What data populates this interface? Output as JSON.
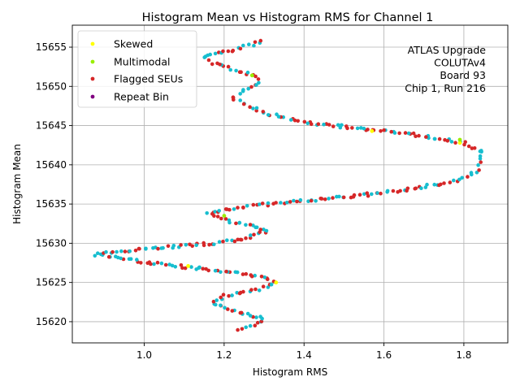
{
  "chart_data": {
    "type": "scatter",
    "title": "Histogram Mean vs Histogram RMS for Channel 1",
    "xlabel": "Histogram RMS",
    "ylabel": "Histogram Mean",
    "xlim": [
      0.82,
      1.91
    ],
    "ylim": [
      15617.3,
      15657.8
    ],
    "xticks": [
      1.0,
      1.2,
      1.4,
      1.6,
      1.8
    ],
    "xtick_labels": [
      "1.0",
      "1.2",
      "1.4",
      "1.6",
      "1.8"
    ],
    "yticks": [
      15620,
      15625,
      15630,
      15635,
      15640,
      15645,
      15650,
      15655
    ],
    "ytick_labels": [
      "15620",
      "15625",
      "15630",
      "15635",
      "15640",
      "15645",
      "15650",
      "15655"
    ],
    "grid": true,
    "legend_position": "top-left",
    "legend": [
      {
        "label": "Skewed",
        "color": "#ffff00"
      },
      {
        "label": "Multimodal",
        "color": "#99ee00"
      },
      {
        "label": "Flagged SEUs",
        "color": "#d62728"
      },
      {
        "label": "Repeat Bin",
        "color": "#800080"
      }
    ],
    "annotation_lines": [
      "ATLAS Upgrade",
      "COLUTAv4",
      "Board 93",
      "Chip 1, Run 216"
    ],
    "base_color": "#17becf",
    "path": [
      [
        1.24,
        15618.8
      ],
      [
        1.29,
        15620.0
      ],
      [
        1.29,
        15620.5
      ],
      [
        1.22,
        15621.5
      ],
      [
        1.17,
        15622.3
      ],
      [
        1.19,
        15623.0
      ],
      [
        1.21,
        15623.4
      ],
      [
        1.28,
        15624.0
      ],
      [
        1.33,
        15625.0
      ],
      [
        1.28,
        15625.8
      ],
      [
        1.2,
        15626.4
      ],
      [
        1.1,
        15627.0
      ],
      [
        1.02,
        15627.5
      ],
      [
        0.95,
        15628.0
      ],
      [
        0.88,
        15628.5
      ],
      [
        0.93,
        15629.0
      ],
      [
        1.0,
        15629.3
      ],
      [
        1.1,
        15629.7
      ],
      [
        1.18,
        15630.0
      ],
      [
        1.24,
        15630.5
      ],
      [
        1.28,
        15631.0
      ],
      [
        1.31,
        15631.5
      ],
      [
        1.26,
        15632.3
      ],
      [
        1.2,
        15633.0
      ],
      [
        1.16,
        15633.8
      ],
      [
        1.2,
        15634.3
      ],
      [
        1.27,
        15634.8
      ],
      [
        1.38,
        15635.3
      ],
      [
        1.48,
        15635.8
      ],
      [
        1.58,
        15636.3
      ],
      [
        1.68,
        15637.0
      ],
      [
        1.78,
        15638.0
      ],
      [
        1.83,
        15639.0
      ],
      [
        1.84,
        15640.3
      ],
      [
        1.85,
        15641.5
      ],
      [
        1.8,
        15642.8
      ],
      [
        1.7,
        15643.7
      ],
      [
        1.58,
        15644.4
      ],
      [
        1.48,
        15645.0
      ],
      [
        1.38,
        15645.6
      ],
      [
        1.31,
        15646.5
      ],
      [
        1.26,
        15647.5
      ],
      [
        1.22,
        15648.5
      ],
      [
        1.25,
        15649.5
      ],
      [
        1.29,
        15650.5
      ],
      [
        1.27,
        15651.5
      ],
      [
        1.22,
        15652.2
      ],
      [
        1.17,
        15653.0
      ],
      [
        1.15,
        15653.8
      ],
      [
        1.21,
        15654.5
      ],
      [
        1.27,
        15655.3
      ],
      [
        1.3,
        15656.0
      ]
    ],
    "special_points": [
      {
        "series": "Skewed",
        "x": 1.33,
        "y": 15625.0
      },
      {
        "series": "Skewed",
        "x": 1.11,
        "y": 15627.1
      },
      {
        "series": "Skewed",
        "x": 1.57,
        "y": 15644.3
      },
      {
        "series": "Skewed",
        "x": 1.79,
        "y": 15642.8
      },
      {
        "series": "Multimodal",
        "x": 1.27,
        "y": 15651.4
      },
      {
        "series": "Multimodal",
        "x": 1.79,
        "y": 15643.2
      },
      {
        "series": "Multimodal",
        "x": 1.2,
        "y": 15633.5
      }
    ]
  }
}
